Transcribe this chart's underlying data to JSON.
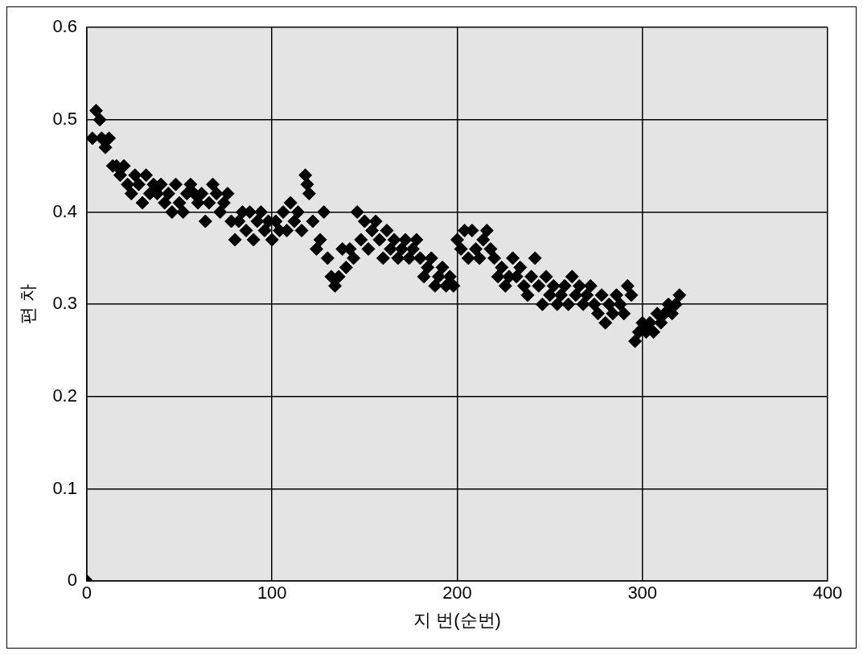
{
  "chart_data": {
    "type": "scatter",
    "xlabel": "지 번(순번)",
    "ylabel": "편 차",
    "xlim": [
      0,
      400
    ],
    "xticks": [
      0,
      100,
      200,
      300,
      400
    ],
    "ylim": [
      0,
      0.6
    ],
    "yticks": [
      0,
      0.1,
      0.2,
      0.3,
      0.4,
      0.5,
      0.6
    ],
    "grid": true,
    "legend": false,
    "marker": "diamond",
    "series": [
      {
        "color": "#000000",
        "x": [
          0,
          3,
          5,
          7,
          8,
          10,
          12,
          14,
          16,
          18,
          20,
          22,
          24,
          26,
          28,
          30,
          32,
          34,
          36,
          38,
          40,
          42,
          44,
          46,
          48,
          50,
          52,
          54,
          56,
          58,
          60,
          62,
          64,
          66,
          68,
          70,
          72,
          74,
          76,
          78,
          80,
          82,
          84,
          86,
          88,
          90,
          92,
          94,
          96,
          98,
          100,
          102,
          104,
          106,
          108,
          110,
          112,
          114,
          116,
          118,
          119,
          120,
          122,
          124,
          126,
          128,
          130,
          132,
          134,
          136,
          138,
          140,
          142,
          144,
          146,
          148,
          150,
          152,
          154,
          156,
          158,
          160,
          162,
          164,
          166,
          168,
          170,
          172,
          174,
          176,
          178,
          180,
          182,
          184,
          186,
          188,
          190,
          192,
          194,
          196,
          198,
          200,
          202,
          204,
          206,
          208,
          210,
          212,
          214,
          216,
          218,
          220,
          222,
          224,
          226,
          228,
          230,
          232,
          234,
          236,
          238,
          240,
          242,
          244,
          246,
          248,
          250,
          252,
          254,
          256,
          258,
          260,
          262,
          264,
          266,
          268,
          270,
          272,
          274,
          276,
          278,
          280,
          282,
          284,
          286,
          288,
          290,
          292,
          294,
          296,
          298,
          300,
          302,
          304,
          306,
          308,
          310,
          312,
          314,
          316,
          318,
          320
        ],
        "values": [
          0,
          0.48,
          0.51,
          0.5,
          0.48,
          0.47,
          0.48,
          0.45,
          0.45,
          0.44,
          0.45,
          0.43,
          0.42,
          0.44,
          0.43,
          0.41,
          0.44,
          0.42,
          0.43,
          0.42,
          0.43,
          0.41,
          0.42,
          0.4,
          0.43,
          0.41,
          0.4,
          0.42,
          0.43,
          0.42,
          0.41,
          0.42,
          0.39,
          0.41,
          0.43,
          0.42,
          0.4,
          0.41,
          0.42,
          0.39,
          0.37,
          0.39,
          0.4,
          0.38,
          0.4,
          0.37,
          0.39,
          0.4,
          0.38,
          0.39,
          0.37,
          0.39,
          0.38,
          0.4,
          0.38,
          0.41,
          0.39,
          0.4,
          0.38,
          0.44,
          0.43,
          0.42,
          0.39,
          0.36,
          0.37,
          0.4,
          0.35,
          0.33,
          0.32,
          0.33,
          0.36,
          0.34,
          0.36,
          0.35,
          0.4,
          0.37,
          0.39,
          0.36,
          0.38,
          0.39,
          0.37,
          0.35,
          0.38,
          0.36,
          0.37,
          0.35,
          0.36,
          0.37,
          0.35,
          0.36,
          0.37,
          0.35,
          0.33,
          0.34,
          0.35,
          0.32,
          0.33,
          0.34,
          0.32,
          0.33,
          0.32,
          0.37,
          0.36,
          0.38,
          0.35,
          0.38,
          0.36,
          0.35,
          0.37,
          0.38,
          0.36,
          0.35,
          0.33,
          0.34,
          0.32,
          0.33,
          0.35,
          0.33,
          0.34,
          0.32,
          0.31,
          0.33,
          0.35,
          0.32,
          0.3,
          0.33,
          0.31,
          0.32,
          0.3,
          0.31,
          0.32,
          0.3,
          0.33,
          0.31,
          0.32,
          0.3,
          0.31,
          0.32,
          0.3,
          0.29,
          0.31,
          0.28,
          0.3,
          0.29,
          0.31,
          0.3,
          0.29,
          0.32,
          0.31,
          0.26,
          0.27,
          0.28,
          0.27,
          0.28,
          0.27,
          0.29,
          0.28,
          0.29,
          0.3,
          0.29,
          0.3,
          0.31
        ]
      }
    ]
  }
}
